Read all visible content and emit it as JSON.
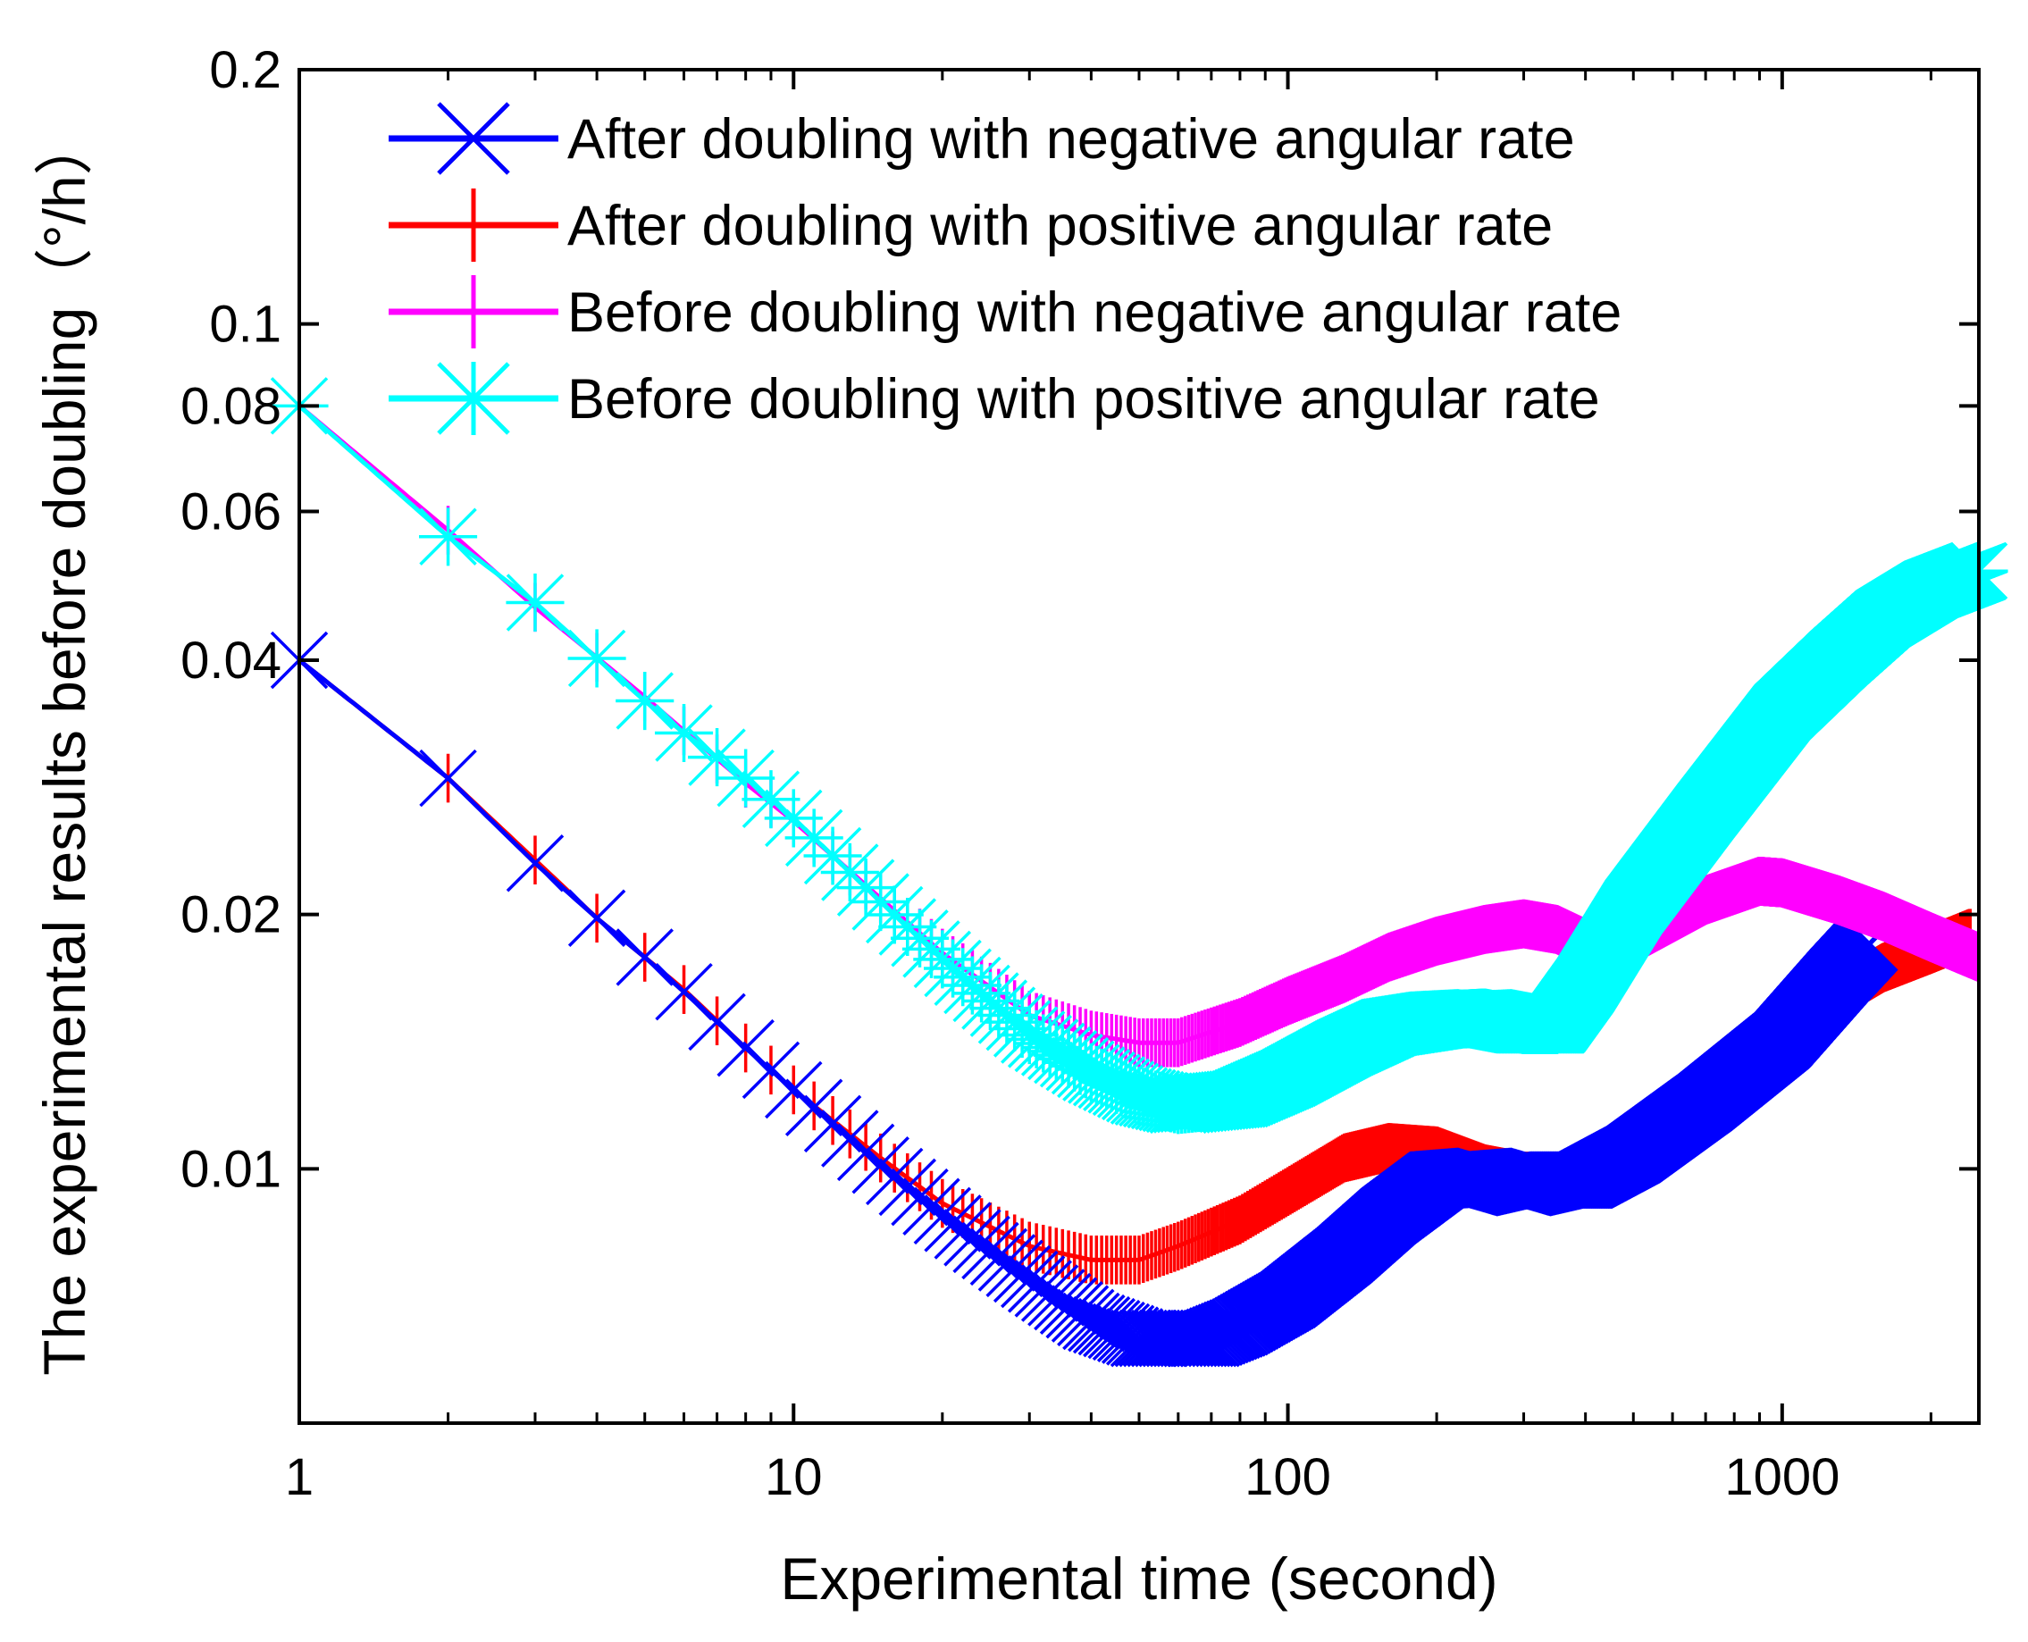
{
  "chart_data": {
    "type": "line",
    "title": "",
    "xlabel": "Experimental time (second)",
    "ylabel": "The experimental results before doubling（°/h）",
    "x_scale": "log",
    "y_scale": "log",
    "xlim": [
      1,
      2500
    ],
    "ylim": [
      0.005,
      0.2
    ],
    "x_ticks": [
      {
        "value": 1,
        "label": "1"
      },
      {
        "value": 10,
        "label": "10"
      },
      {
        "value": 100,
        "label": "100"
      },
      {
        "value": 1000,
        "label": "1000"
      }
    ],
    "y_ticks": [
      {
        "value": 0.01,
        "label": "0.01"
      },
      {
        "value": 0.02,
        "label": "0.02"
      },
      {
        "value": 0.04,
        "label": "0.04"
      },
      {
        "value": 0.06,
        "label": "0.06"
      },
      {
        "value": 0.08,
        "label": "0.08"
      },
      {
        "value": 0.1,
        "label": "0.1"
      },
      {
        "value": 0.2,
        "label": "0.2"
      }
    ],
    "legend_position": "top",
    "grid": false,
    "series": [
      {
        "name": "After doubling with negative angular rate",
        "color": "#0000ff",
        "marker": "x",
        "x": [
          1,
          2,
          3,
          4,
          5,
          6,
          8,
          10,
          15,
          20,
          30,
          40,
          50,
          60,
          70,
          80,
          100,
          130,
          160,
          200,
          250,
          300,
          350,
          400,
          500,
          700,
          1000,
          1300,
          1500
        ],
        "y": [
          0.04,
          0.029,
          0.023,
          0.0198,
          0.0178,
          0.0162,
          0.0139,
          0.0124,
          0.0101,
          0.0088,
          0.0074,
          0.0066,
          0.0063,
          0.0063,
          0.0063,
          0.0065,
          0.007,
          0.0079,
          0.0088,
          0.0097,
          0.0098,
          0.0095,
          0.0097,
          0.0097,
          0.0104,
          0.012,
          0.0142,
          0.0169,
          0.0185
        ]
      },
      {
        "name": "After doubling with positive  angular rate",
        "color": "#ff0000",
        "marker": "+",
        "x": [
          1,
          2,
          3,
          4,
          5,
          6,
          8,
          10,
          15,
          20,
          30,
          40,
          50,
          60,
          80,
          100,
          130,
          160,
          200,
          250,
          300,
          400,
          500,
          700,
          1000,
          1300,
          1600,
          2000,
          2400
        ],
        "y": [
          0.04,
          0.029,
          0.0232,
          0.0198,
          0.0178,
          0.0163,
          0.0139,
          0.0124,
          0.0103,
          0.0091,
          0.0081,
          0.0078,
          0.0078,
          0.0081,
          0.0087,
          0.0094,
          0.0103,
          0.0106,
          0.0105,
          0.01,
          0.0098,
          0.0098,
          0.0106,
          0.0124,
          0.0145,
          0.0161,
          0.0173,
          0.0182,
          0.019
        ]
      },
      {
        "name": "Before doubling with negative angular rate",
        "color": "#ff00ff",
        "marker": "+",
        "x": [
          1,
          2,
          3,
          4,
          5,
          6,
          8,
          10,
          15,
          20,
          30,
          40,
          50,
          60,
          80,
          100,
          130,
          160,
          200,
          250,
          300,
          350,
          400,
          500,
          700,
          900,
          1000,
          1300,
          1600,
          2000,
          2500
        ],
        "y": [
          0.08,
          0.057,
          0.0462,
          0.0403,
          0.0362,
          0.033,
          0.0286,
          0.0258,
          0.0209,
          0.018,
          0.0152,
          0.0144,
          0.0141,
          0.0141,
          0.0149,
          0.0158,
          0.0168,
          0.0178,
          0.0186,
          0.0192,
          0.0195,
          0.0192,
          0.0185,
          0.0187,
          0.0208,
          0.0219,
          0.0218,
          0.0208,
          0.0199,
          0.0188,
          0.0178
        ]
      },
      {
        "name": "Before doubling with positive angular rate",
        "color": "#00ffff",
        "marker": "*",
        "x": [
          1,
          2,
          3,
          4,
          5,
          6,
          8,
          10,
          15,
          20,
          30,
          40,
          50,
          60,
          80,
          100,
          130,
          160,
          200,
          250,
          300,
          350,
          400,
          500,
          700,
          1000,
          1300,
          1600,
          2000,
          2500
        ],
        "y": [
          0.08,
          0.056,
          0.0468,
          0.0402,
          0.0358,
          0.0328,
          0.029,
          0.026,
          0.0207,
          0.0177,
          0.0144,
          0.013,
          0.0122,
          0.0119,
          0.0121,
          0.0128,
          0.0139,
          0.0147,
          0.015,
          0.0151,
          0.0148,
          0.0148,
          0.0165,
          0.0204,
          0.0265,
          0.0347,
          0.0402,
          0.0448,
          0.0485,
          0.051
        ]
      }
    ]
  }
}
